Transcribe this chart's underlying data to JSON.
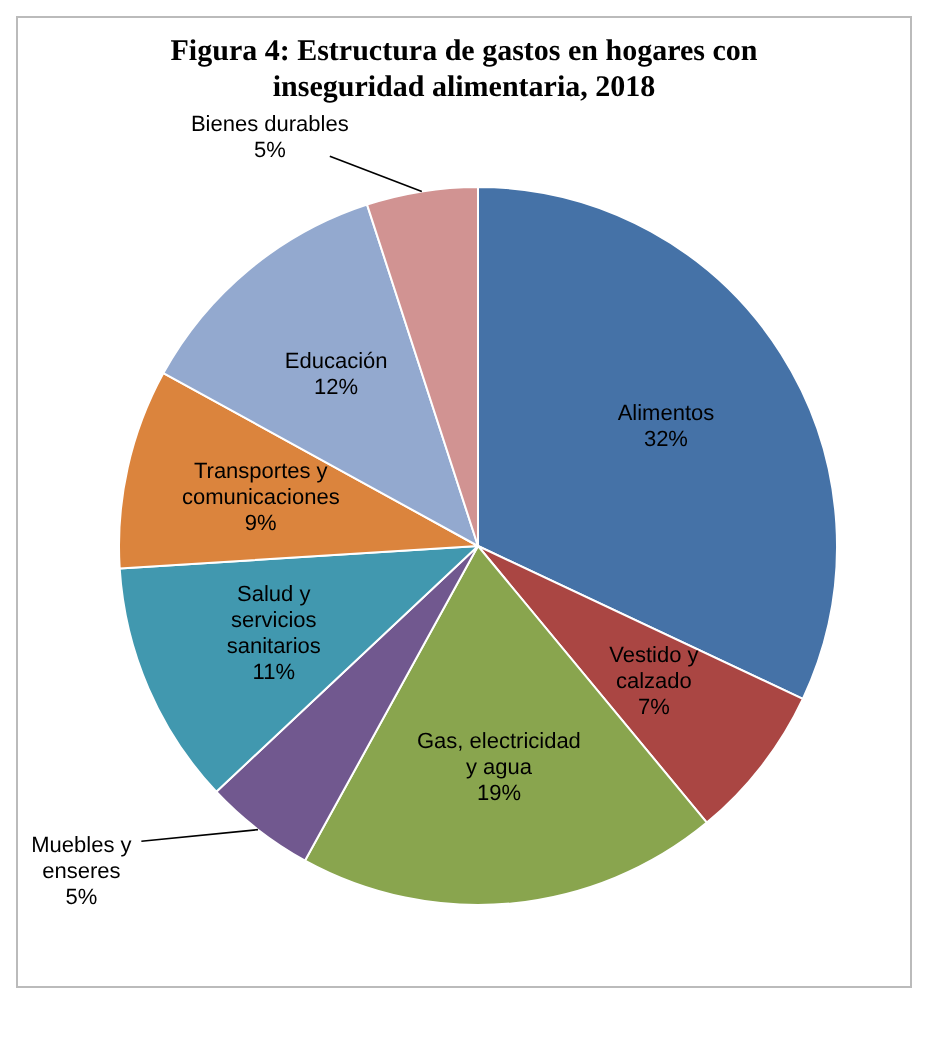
{
  "chart_data": {
    "type": "pie",
    "title": "Figura 4: Estructura  de gastos en hogares con inseguridad alimentaria, 2018",
    "categories": [
      "Alimentos",
      "Vestido y calzado",
      "Gas, electricidad y agua",
      "Muebles y enseres",
      "Salud y servicios sanitarios",
      "Transportes y comunicaciones",
      "Educación",
      "Bienes durables"
    ],
    "values": [
      32,
      7,
      19,
      5,
      11,
      9,
      12,
      5
    ],
    "value_labels": [
      "32%",
      "7%",
      "19%",
      "5%",
      "11%",
      "9%",
      "12%",
      "5%"
    ],
    "colors": [
      "#4572a7",
      "#aa4643",
      "#89a54e",
      "#71588f",
      "#4198af",
      "#db843d",
      "#93a9cf",
      "#d19392"
    ],
    "legend": false
  }
}
